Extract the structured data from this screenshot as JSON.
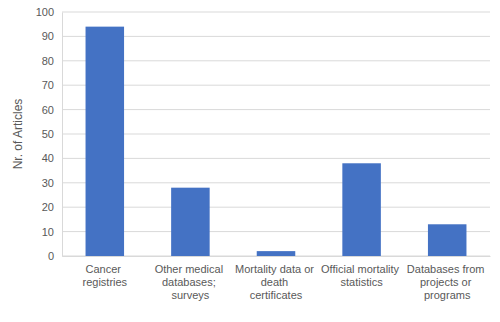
{
  "chart_data": {
    "type": "bar",
    "y_label": "Nr. of Articles",
    "categories": [
      "Cancer registries",
      "Other medical databases; surveys",
      "Mortality data or death certificates",
      "Official mortality statistics",
      "Databases from projects or programs"
    ],
    "values": [
      94,
      28,
      2,
      38,
      13
    ],
    "color": "#4472c4",
    "ylim": [
      0,
      100
    ],
    "yticks": [
      0,
      10,
      20,
      30,
      40,
      50,
      60,
      70,
      80,
      90,
      100
    ],
    "grid": true
  }
}
